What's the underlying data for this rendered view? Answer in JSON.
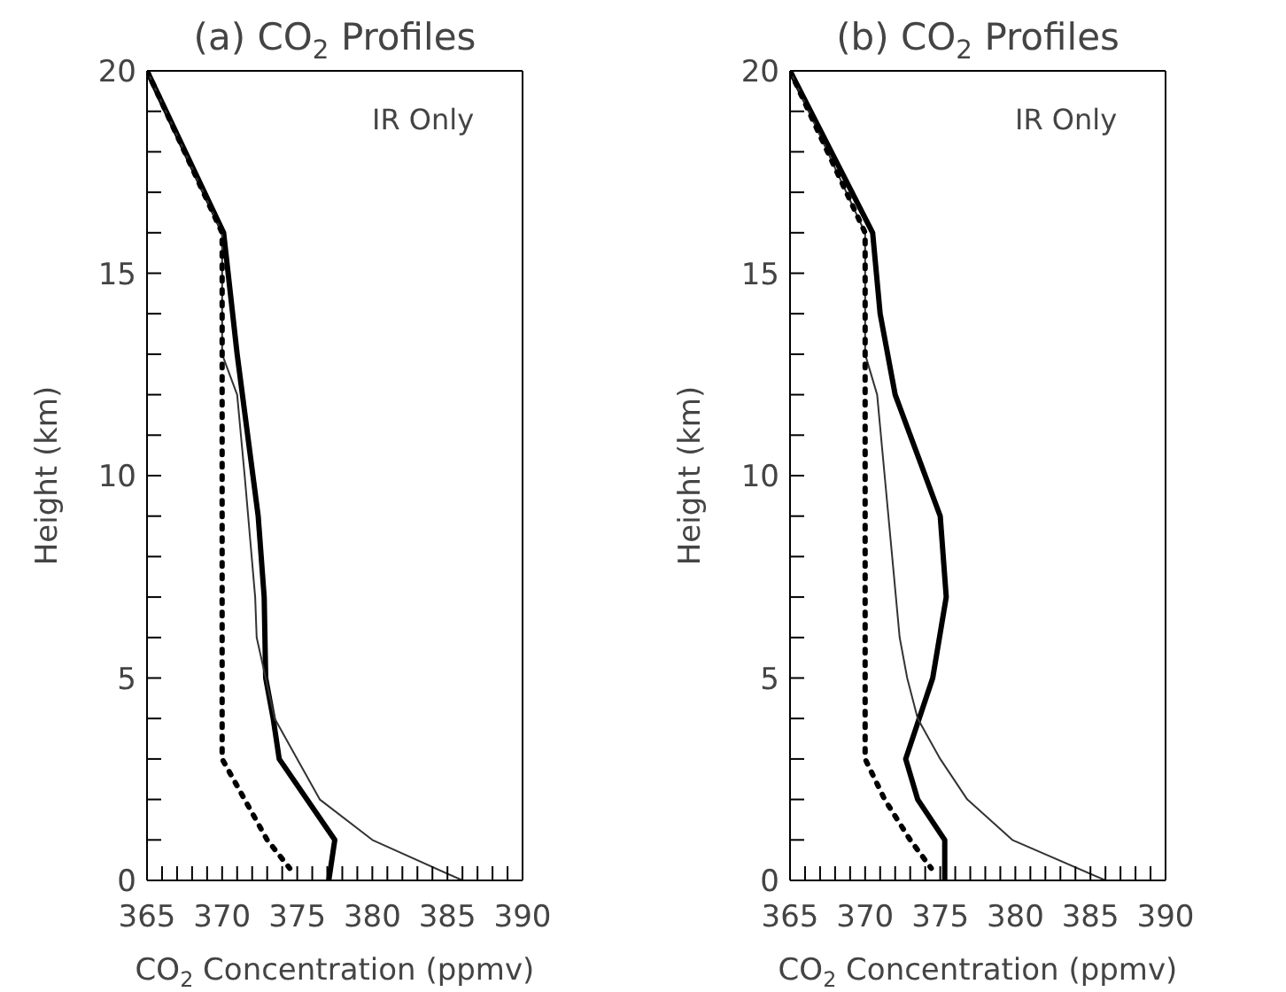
{
  "chart_data": [
    {
      "type": "line",
      "title": "(a) CO$_{2}$ Profiles",
      "xlabel": "CO$_{2}$ Concentration (ppmv)",
      "ylabel": "Height (km)",
      "annotations": [
        "IR Only"
      ],
      "xlim": [
        365,
        390
      ],
      "xticks": [
        365,
        {
          "value": 366,
          "label": null
        },
        {
          "value": 367,
          "label": null
        },
        {
          "value": 368,
          "label": null
        },
        {
          "value": 369,
          "label": null
        },
        370,
        {
          "value": 371,
          "label": null
        },
        {
          "value": 372,
          "label": null
        },
        {
          "value": 373,
          "label": null
        },
        {
          "value": 374,
          "label": null
        },
        375,
        {
          "value": 376,
          "label": null
        },
        {
          "value": 377,
          "label": null
        },
        {
          "value": 378,
          "label": null
        },
        {
          "value": 379,
          "label": null
        },
        380,
        {
          "value": 381,
          "label": null
        },
        {
          "value": 382,
          "label": null
        },
        {
          "value": 383,
          "label": null
        },
        {
          "value": 384,
          "label": null
        },
        385,
        {
          "value": 386,
          "label": null
        },
        {
          "value": 387,
          "label": null
        },
        {
          "value": 388,
          "label": null
        },
        {
          "value": 389,
          "label": null
        },
        390
      ],
      "ylim": [
        0,
        20
      ],
      "yticks": [
        0,
        {
          "value": 1,
          "label": null
        },
        {
          "value": 2,
          "label": null
        },
        {
          "value": 3,
          "label": null
        },
        {
          "value": 4,
          "label": null
        },
        5,
        {
          "value": 6,
          "label": null
        },
        {
          "value": 7,
          "label": null
        },
        {
          "value": 8,
          "label": null
        },
        {
          "value": 9,
          "label": null
        },
        10,
        {
          "value": 11,
          "label": null
        },
        {
          "value": 12,
          "label": null
        },
        {
          "value": 13,
          "label": null
        },
        {
          "value": 14,
          "label": null
        },
        15,
        {
          "value": 16,
          "label": null
        },
        {
          "value": 17,
          "label": null
        },
        {
          "value": 18,
          "label": null
        },
        {
          "value": 19,
          "label": null
        },
        20
      ],
      "marker": "none",
      "series": [
        {
          "color": "#000000",
          "line_style": "solid",
          "x": [
            365,
            370.1,
            371,
            372.4,
            372.8,
            372.9,
            373.4,
            373.8,
            377.5,
            377.1
          ],
          "values": [
            20,
            16,
            13,
            9,
            7,
            5,
            4,
            3,
            1,
            0
          ]
        },
        {
          "color": "#333333",
          "line_style": "solid",
          "x": [
            365,
            370,
            370,
            371,
            371.5,
            372.2,
            372.3,
            373.5,
            375,
            376.5,
            380,
            386
          ],
          "values": [
            20,
            16,
            13,
            12,
            10,
            7,
            6,
            4,
            3,
            2,
            1,
            0
          ]
        },
        {
          "color": "#000000",
          "line_style": "dotted",
          "x": [
            365,
            370,
            370,
            371.5,
            373,
            374.5
          ],
          "values": [
            20,
            16,
            3,
            2,
            1,
            0.3
          ]
        }
      ]
    },
    {
      "type": "line",
      "title": "(b) CO$_{2}$ Profiles",
      "xlabel": "CO$_{2}$ Concentration (ppmv)",
      "ylabel": "Height (km)",
      "annotations": [
        "IR Only"
      ],
      "xlim": [
        365,
        390
      ],
      "xticks": [
        365,
        {
          "value": 366,
          "label": null
        },
        {
          "value": 367,
          "label": null
        },
        {
          "value": 368,
          "label": null
        },
        {
          "value": 369,
          "label": null
        },
        370,
        {
          "value": 371,
          "label": null
        },
        {
          "value": 372,
          "label": null
        },
        {
          "value": 373,
          "label": null
        },
        {
          "value": 374,
          "label": null
        },
        375,
        {
          "value": 376,
          "label": null
        },
        {
          "value": 377,
          "label": null
        },
        {
          "value": 378,
          "label": null
        },
        {
          "value": 379,
          "label": null
        },
        380,
        {
          "value": 381,
          "label": null
        },
        {
          "value": 382,
          "label": null
        },
        {
          "value": 383,
          "label": null
        },
        {
          "value": 384,
          "label": null
        },
        385,
        {
          "value": 386,
          "label": null
        },
        {
          "value": 387,
          "label": null
        },
        {
          "value": 388,
          "label": null
        },
        {
          "value": 389,
          "label": null
        },
        390
      ],
      "ylim": [
        0,
        20
      ],
      "yticks": [
        0,
        {
          "value": 1,
          "label": null
        },
        {
          "value": 2,
          "label": null
        },
        {
          "value": 3,
          "label": null
        },
        {
          "value": 4,
          "label": null
        },
        5,
        {
          "value": 6,
          "label": null
        },
        {
          "value": 7,
          "label": null
        },
        {
          "value": 8,
          "label": null
        },
        {
          "value": 9,
          "label": null
        },
        10,
        {
          "value": 11,
          "label": null
        },
        {
          "value": 12,
          "label": null
        },
        {
          "value": 13,
          "label": null
        },
        {
          "value": 14,
          "label": null
        },
        15,
        {
          "value": 16,
          "label": null
        },
        {
          "value": 17,
          "label": null
        },
        {
          "value": 18,
          "label": null
        },
        {
          "value": 19,
          "label": null
        },
        20
      ],
      "marker": "none",
      "series": [
        {
          "color": "#000000",
          "line_style": "solid",
          "x": [
            365,
            370.5,
            371,
            372,
            374,
            375,
            375.4,
            374.5,
            372.7,
            373.5,
            375.3,
            375.3
          ],
          "values": [
            20,
            16,
            14,
            12,
            10,
            9,
            7,
            5,
            3,
            2,
            1,
            0
          ]
        },
        {
          "color": "#333333",
          "line_style": "solid",
          "x": [
            365,
            370,
            370,
            370.8,
            371.3,
            371.8,
            372.3,
            372.8,
            373.5,
            375,
            376.8,
            379.8,
            386
          ],
          "values": [
            20,
            16,
            13,
            12,
            10,
            8,
            6,
            5,
            4,
            3,
            2,
            1,
            0
          ]
        },
        {
          "color": "#000000",
          "line_style": "dotted",
          "x": [
            365,
            370,
            370,
            371.3,
            373,
            374.4
          ],
          "values": [
            20,
            16,
            3,
            2,
            1,
            0.3
          ]
        }
      ]
    }
  ]
}
